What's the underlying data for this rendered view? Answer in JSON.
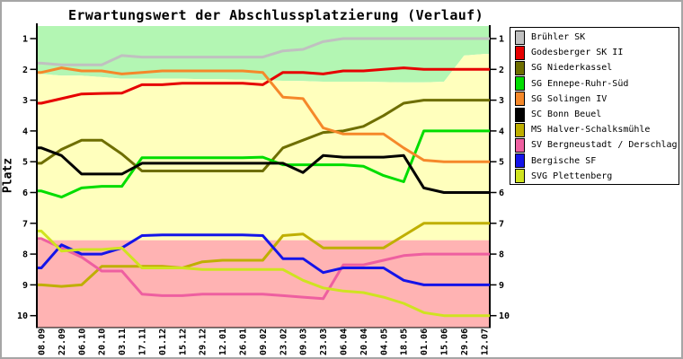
{
  "title": "Erwartungswert der Abschlussplatzierung (Verlauf)",
  "chart_data": {
    "type": "line",
    "title": "Erwartungswert der Abschlussplatzierung (Verlauf)",
    "ylabel": "Platz",
    "legend_position": "right",
    "grid": false,
    "y_axis": {
      "min": 1,
      "max": 10,
      "inverted": true,
      "ticks": [
        "1",
        "2",
        "3",
        "4",
        "5",
        "6",
        "7",
        "8",
        "9",
        "10"
      ]
    },
    "x_labels": [
      "08.09",
      "22.09",
      "06.10",
      "20.10",
      "03.11",
      "17.11",
      "01.12",
      "15.12",
      "29.12",
      "12.01",
      "26.01",
      "09.02",
      "23.02",
      "09.03",
      "23.03",
      "06.04",
      "20.04",
      "04.05",
      "18.05",
      "01.06",
      "15.06",
      "29.06",
      "12.07"
    ],
    "bands": {
      "promotion": {
        "name": "promotion-zone",
        "color": "#b3f6b3",
        "boundary_values": [
          2.15,
          2.2,
          2.2,
          2.25,
          2.3,
          2.3,
          2.3,
          2.3,
          2.32,
          2.32,
          2.33,
          2.35,
          2.37,
          2.38,
          2.4,
          2.4,
          2.4,
          2.41,
          2.42,
          2.42,
          2.4,
          1.55,
          1.5
        ]
      },
      "midfield": {
        "name": "midfield-zone",
        "color": "#ffffbd"
      },
      "relegation": {
        "name": "relegation-zone",
        "color": "#ffb3b3",
        "boundary": 7.55
      }
    },
    "series": [
      {
        "name": "Brühler SK",
        "color": "#c0c0c0",
        "values": [
          1.8,
          1.85,
          1.85,
          1.85,
          1.55,
          1.6,
          1.6,
          1.6,
          1.6,
          1.6,
          1.6,
          1.6,
          1.4,
          1.35,
          1.1,
          1.0,
          1.0,
          1.0,
          1.0,
          1.0,
          1.0,
          1.0,
          1.0
        ]
      },
      {
        "name": "Godesberger SK II",
        "color": "#e60000",
        "values": [
          3.1,
          2.95,
          2.8,
          2.78,
          2.77,
          2.5,
          2.5,
          2.45,
          2.45,
          2.45,
          2.45,
          2.5,
          2.1,
          2.1,
          2.15,
          2.05,
          2.05,
          2.0,
          1.95,
          2.0,
          2.0,
          2.0,
          2.0
        ]
      },
      {
        "name": "SG Niederkassel",
        "color": "#6e6e00",
        "values": [
          5.05,
          4.6,
          4.3,
          4.3,
          4.75,
          5.3,
          5.3,
          5.3,
          5.3,
          5.3,
          5.3,
          5.3,
          4.55,
          4.3,
          4.05,
          4.0,
          3.85,
          3.5,
          3.1,
          3.0,
          3.0,
          3.0,
          3.0
        ]
      },
      {
        "name": "SG Ennepe-Ruhr-Süd",
        "color": "#00dd00",
        "values": [
          5.95,
          6.15,
          5.85,
          5.8,
          5.8,
          4.87,
          4.87,
          4.87,
          4.87,
          4.87,
          4.87,
          4.85,
          5.1,
          5.1,
          5.1,
          5.1,
          5.15,
          5.45,
          5.65,
          4.0,
          4.0,
          4.0,
          4.0
        ]
      },
      {
        "name": "SG Solingen IV",
        "color": "#f5882a",
        "values": [
          2.1,
          1.95,
          2.05,
          2.05,
          2.15,
          2.1,
          2.05,
          2.05,
          2.05,
          2.05,
          2.05,
          2.1,
          2.9,
          2.95,
          3.9,
          4.1,
          4.1,
          4.1,
          4.55,
          4.95,
          5.0,
          5.0,
          5.0
        ]
      },
      {
        "name": "SC Bonn Beuel",
        "color": "#000000",
        "values": [
          4.55,
          4.8,
          5.4,
          5.4,
          5.4,
          5.05,
          5.05,
          5.05,
          5.05,
          5.05,
          5.05,
          5.05,
          5.05,
          5.35,
          4.8,
          4.85,
          4.85,
          4.85,
          4.8,
          5.85,
          6.0,
          6.0,
          6.0
        ]
      },
      {
        "name": "MS Halver-Schalksmühle",
        "color": "#bfaf00",
        "values": [
          9.0,
          9.05,
          9.0,
          8.4,
          8.4,
          8.4,
          8.4,
          8.45,
          8.25,
          8.2,
          8.2,
          8.2,
          7.4,
          7.35,
          7.8,
          7.8,
          7.8,
          7.8,
          7.4,
          7.0,
          7.0,
          7.0,
          7.0
        ]
      },
      {
        "name": "SV Bergneustadt / Derschlag",
        "color": "#ee5fa0",
        "values": [
          7.5,
          7.8,
          8.1,
          8.55,
          8.55,
          9.3,
          9.35,
          9.35,
          9.3,
          9.3,
          9.3,
          9.3,
          9.35,
          9.4,
          9.45,
          8.35,
          8.35,
          8.2,
          8.05,
          8.0,
          8.0,
          8.0,
          8.0
        ]
      },
      {
        "name": "Bergische SF",
        "color": "#1414e8",
        "values": [
          8.45,
          7.7,
          8.0,
          8.0,
          7.8,
          7.4,
          7.38,
          7.38,
          7.38,
          7.38,
          7.38,
          7.4,
          8.15,
          8.15,
          8.6,
          8.45,
          8.45,
          8.45,
          8.85,
          9.0,
          9.0,
          9.0,
          9.0
        ]
      },
      {
        "name": "SVG Plettenberg",
        "color": "#cfe320",
        "values": [
          7.25,
          7.9,
          7.85,
          7.85,
          7.8,
          8.45,
          8.45,
          8.45,
          8.5,
          8.5,
          8.5,
          8.5,
          8.5,
          8.85,
          9.1,
          9.2,
          9.25,
          9.4,
          9.6,
          9.9,
          10.0,
          10.0,
          10.0
        ]
      }
    ]
  }
}
